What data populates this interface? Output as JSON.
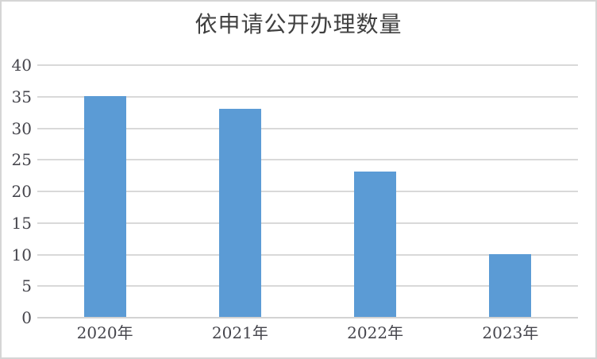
{
  "chart_data": {
    "type": "bar",
    "title": "依申请公开办理数量",
    "categories": [
      "2020年",
      "2021年",
      "2022年",
      "2023年"
    ],
    "values": [
      35,
      33,
      23,
      10
    ],
    "xlabel": "",
    "ylabel": "",
    "ylim": [
      0,
      40
    ],
    "yticks": [
      0,
      5,
      10,
      15,
      20,
      25,
      30,
      35,
      40
    ],
    "grid": true,
    "legend": false
  },
  "colors": {
    "bar": "#5B9BD5",
    "gridline": "#D9D9D9",
    "axis_line": "#D3D3D3",
    "tick_label": "#45454C",
    "title": "#404040",
    "frame_border": "#D5D5D5",
    "background": "#FFFFFF"
  }
}
